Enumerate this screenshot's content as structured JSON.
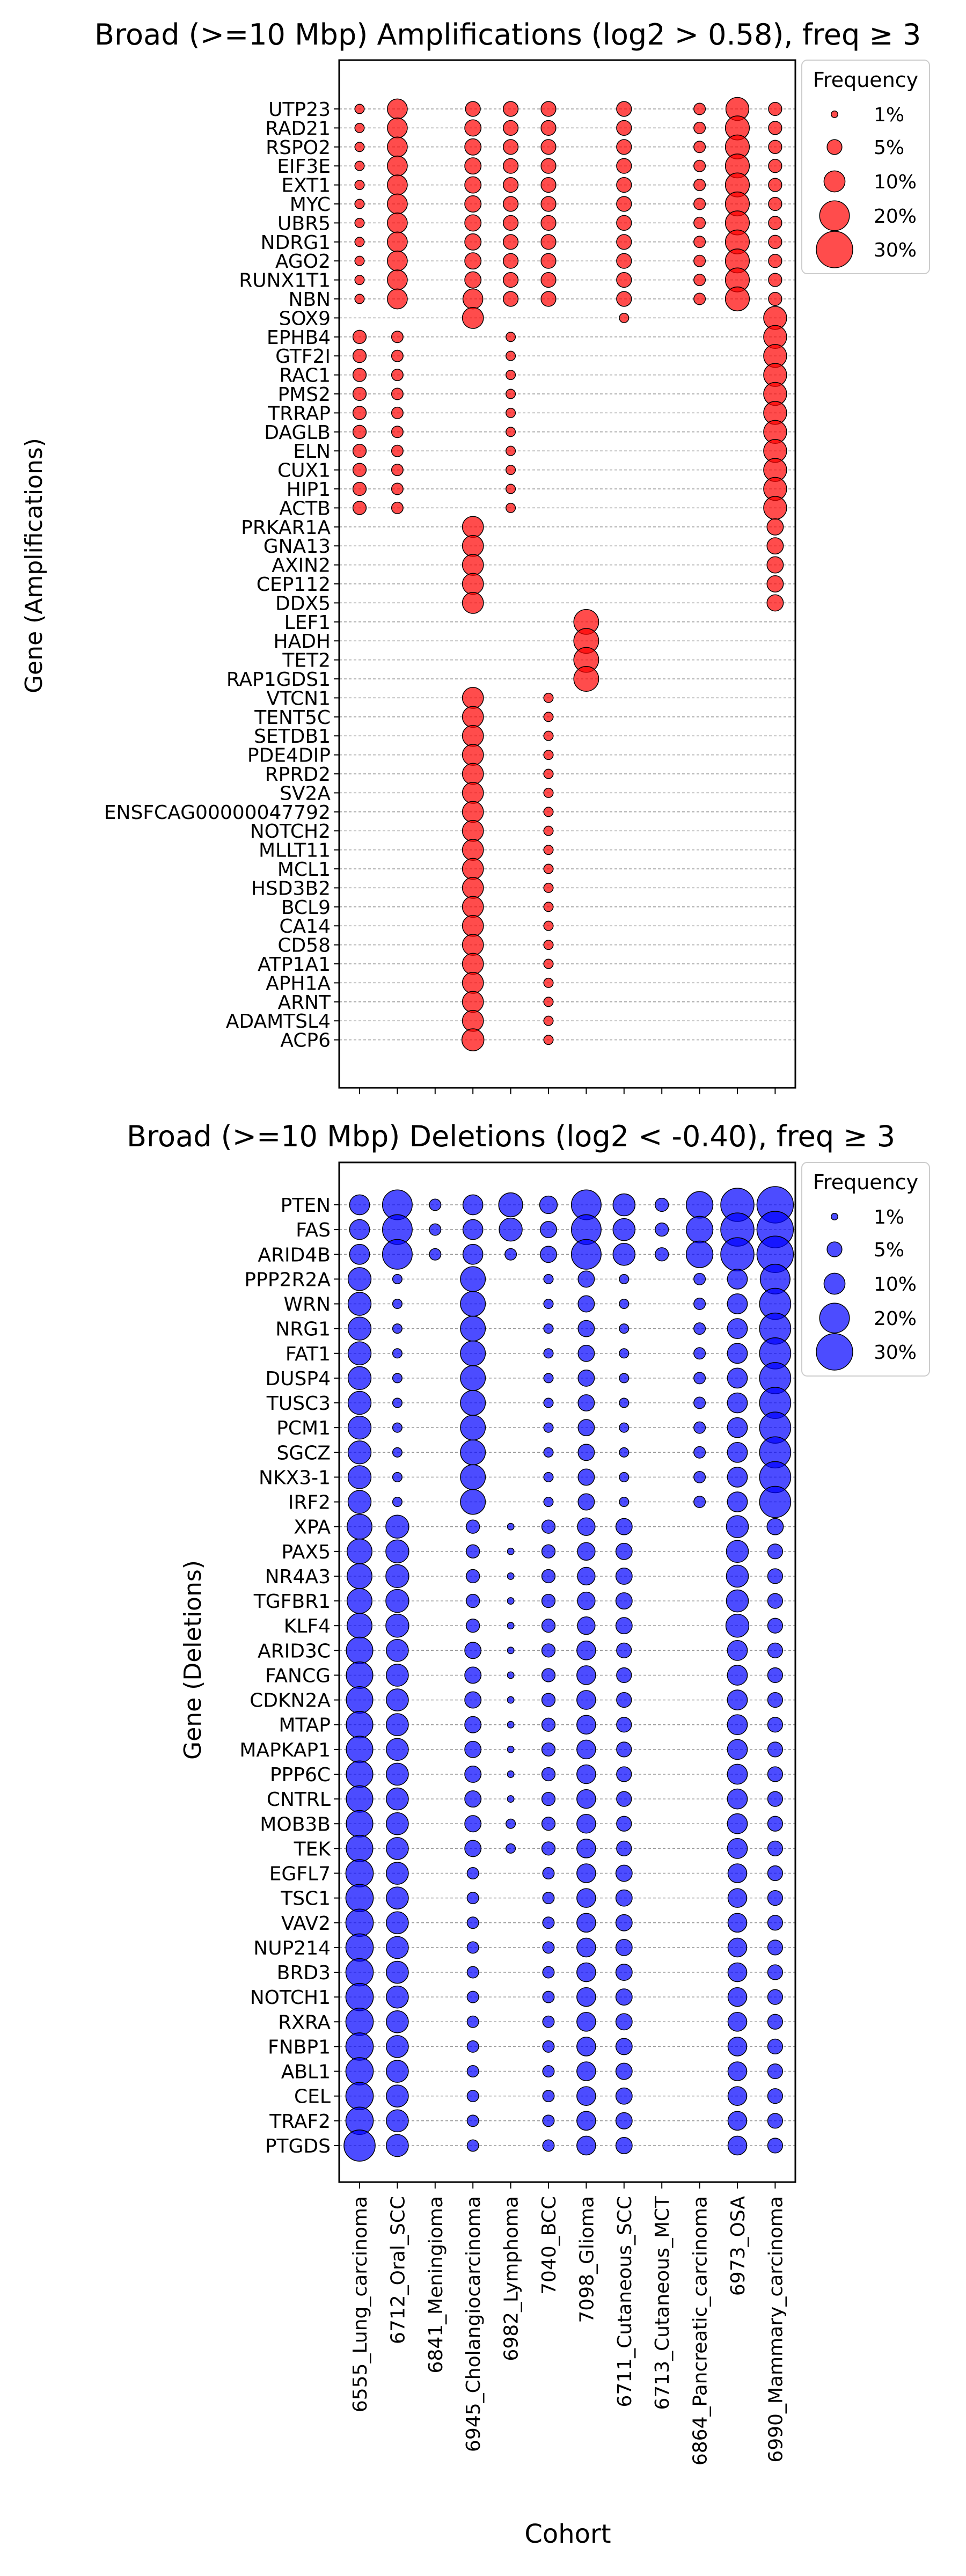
{
  "colors": {
    "amplification": "#ff0000",
    "deletion": "#0000ff",
    "text": "#000000",
    "gridline": "#808080"
  },
  "chart_data": [
    {
      "type": "scatter",
      "title": "Broad (>=10 Mbp) Amplifications (log2 > 0.58), freq ≥ 3",
      "ylabel": "Gene (Amplifications)",
      "xlabel": "",
      "color": "#ff0000",
      "grid": true,
      "legend": {
        "title": "Frequency",
        "placement": "upper-right outside",
        "labels": [
          "1%",
          "5%",
          "10%",
          "20%",
          "30%"
        ],
        "values": [
          1,
          5,
          10,
          20,
          30
        ]
      },
      "cohorts": [
        "6555_Lung_carcinoma",
        "6712_Oral_SCC",
        "6841_Meningioma",
        "6945_Cholangiocarcinoma",
        "6982_Lymphoma",
        "7040_BCC",
        "7098_Glioma",
        "6711_Cutaneous_SCC",
        "6713_Cutaneous_MCT",
        "6864_Pancreatic_carcinoma",
        "6973_OSA",
        "6990_Mammary_carcinoma"
      ],
      "genes": [
        "UTP23",
        "RAD21",
        "RSPO2",
        "EIF3E",
        "EXT1",
        "MYC",
        "UBR5",
        "NDRG1",
        "AGO2",
        "RUNX1T1",
        "NBN",
        "SOX9",
        "EPHB4",
        "GTF2I",
        "RAC1",
        "PMS2",
        "TRRAP",
        "DAGLB",
        "ELN",
        "CUX1",
        "HIP1",
        "ACTB",
        "PRKAR1A",
        "GNA13",
        "AXIN2",
        "CEP112",
        "DDX5",
        "LEF1",
        "HADH",
        "TET2",
        "RAP1GDS1",
        "VTCN1",
        "TENT5C",
        "SETDB1",
        "PDE4DIP",
        "RPRD2",
        "SV2A",
        "ENSFCAG00000047792",
        "NOTCH2",
        "MLLT11",
        "MCL1",
        "HSD3B2",
        "BCL9",
        "CA14",
        "CD58",
        "ATP1A1",
        "APH1A",
        "ARNT",
        "ADAMTSL4",
        "ACP6"
      ],
      "groups": [
        {
          "genes": [
            "UTP23",
            "RAD21",
            "RSPO2",
            "EIF3E",
            "EXT1",
            "MYC",
            "UBR5",
            "NDRG1",
            "AGO2",
            "RUNX1T1",
            "NBN"
          ],
          "freq": {
            "6555_Lung_carcinoma": 2,
            "6712_Oral_SCC": 9,
            "6945_Cholangiocarcinoma": 6,
            "6982_Lymphoma": 5,
            "7040_BCC": 5,
            "6711_Cutaneous_SCC": 5,
            "6864_Pancreatic_carcinoma": 3,
            "6973_OSA": 13,
            "6990_Mammary_carcinoma": 4
          }
        },
        {
          "genes": [
            "SOX9"
          ],
          "freq": {
            "6945_Cholangiocarcinoma": 10,
            "6711_Cutaneous_SCC": 2,
            "6990_Mammary_carcinoma": 12
          }
        },
        {
          "genes": [
            "EPHB4",
            "GTF2I",
            "RAC1",
            "PMS2",
            "TRRAP",
            "DAGLB",
            "ELN",
            "CUX1",
            "HIP1",
            "ACTB"
          ],
          "freq": {
            "6555_Lung_carcinoma": 4,
            "6712_Oral_SCC": 3,
            "6982_Lymphoma": 2,
            "6990_Mammary_carcinoma": 12
          }
        },
        {
          "genes": [
            "PRKAR1A",
            "GNA13",
            "AXIN2",
            "CEP112",
            "DDX5"
          ],
          "freq": {
            "6945_Cholangiocarcinoma": 10,
            "6990_Mammary_carcinoma": 6
          }
        },
        {
          "genes": [
            "LEF1",
            "HADH",
            "TET2",
            "RAP1GDS1"
          ],
          "freq": {
            "7098_Glioma": 14
          }
        },
        {
          "genes": [
            "VTCN1",
            "TENT5C",
            "SETDB1",
            "PDE4DIP",
            "RPRD2",
            "SV2A",
            "ENSFCAG00000047792",
            "NOTCH2",
            "MLLT11",
            "MCL1",
            "HSD3B2",
            "BCL9",
            "CA14",
            "CD58",
            "ATP1A1",
            "APH1A",
            "ARNT",
            "ADAMTSL4",
            "ACP6"
          ],
          "freq": {
            "6945_Cholangiocarcinoma": 10,
            "7040_BCC": 2
          }
        }
      ],
      "overrides": [
        {
          "gene": "UTP23",
          "cohort": "6945_Cholangiocarcinoma",
          "freq": 5
        },
        {
          "gene": "UTP23",
          "cohort": "6973_OSA",
          "freq": 12
        },
        {
          "gene": "NBN",
          "cohort": "6945_Cholangiocarcinoma",
          "freq": 9
        },
        {
          "gene": "ACP6",
          "cohort": "6945_Cholangiocarcinoma",
          "freq": 11
        }
      ]
    },
    {
      "type": "scatter",
      "title": "Broad (>=10 Mbp) Deletions (log2 < -0.40), freq ≥ 3",
      "ylabel": "Gene (Deletions)",
      "xlabel": "Cohort",
      "color": "#0000ff",
      "grid": true,
      "legend": {
        "title": "Frequency",
        "placement": "upper-right outside",
        "labels": [
          "1%",
          "5%",
          "10%",
          "20%",
          "30%"
        ],
        "values": [
          1,
          5,
          10,
          20,
          30
        ]
      },
      "cohorts": [
        "6555_Lung_carcinoma",
        "6712_Oral_SCC",
        "6841_Meningioma",
        "6945_Cholangiocarcinoma",
        "6982_Lymphoma",
        "7040_BCC",
        "7098_Glioma",
        "6711_Cutaneous_SCC",
        "6713_Cutaneous_MCT",
        "6864_Pancreatic_carcinoma",
        "6973_OSA",
        "6990_Mammary_carcinoma"
      ],
      "genes": [
        "PTEN",
        "FAS",
        "ARID4B",
        "PPP2R2A",
        "WRN",
        "NRG1",
        "FAT1",
        "DUSP4",
        "TUSC3",
        "PCM1",
        "SGCZ",
        "NKX3-1",
        "IRF2",
        "XPA",
        "PAX5",
        "NR4A3",
        "TGFBR1",
        "KLF4",
        "ARID3C",
        "FANCG",
        "CDKN2A",
        "MTAP",
        "MAPKAP1",
        "PPP6C",
        "CNTRL",
        "MOB3B",
        "TEK",
        "EGFL7",
        "TSC1",
        "VAV2",
        "NUP214",
        "BRD3",
        "NOTCH1",
        "RXRA",
        "FNBP1",
        "ABL1",
        "CEL",
        "TRAF2",
        "PTGDS"
      ],
      "groups": [
        {
          "genes": [
            "PTEN",
            "FAS"
          ],
          "freq": {
            "6555_Lung_carcinoma": 9,
            "6712_Oral_SCC": 20,
            "6841_Meningioma": 3,
            "6945_Cholangiocarcinoma": 9,
            "6982_Lymphoma": 13,
            "7040_BCC": 6,
            "7098_Glioma": 20,
            "6711_Cutaneous_SCC": 11,
            "6713_Cutaneous_MCT": 4,
            "6864_Pancreatic_carcinoma": 16,
            "6973_OSA": 25,
            "6990_Mammary_carcinoma": 30
          }
        },
        {
          "genes": [
            "ARID4B"
          ],
          "freq": {
            "6555_Lung_carcinoma": 9,
            "6712_Oral_SCC": 20,
            "6841_Meningioma": 3,
            "6945_Cholangiocarcinoma": 9,
            "6982_Lymphoma": 3,
            "7040_BCC": 6,
            "7098_Glioma": 20,
            "6711_Cutaneous_SCC": 11,
            "6713_Cutaneous_MCT": 4,
            "6864_Pancreatic_carcinoma": 16,
            "6973_OSA": 25,
            "6990_Mammary_carcinoma": 30
          }
        },
        {
          "genes": [
            "PPP2R2A",
            "WRN",
            "NRG1",
            "FAT1",
            "DUSP4",
            "TUSC3",
            "PCM1",
            "SGCZ",
            "NKX3-1",
            "IRF2"
          ],
          "freq": {
            "6555_Lung_carcinoma": 12,
            "6712_Oral_SCC": 2,
            "6945_Cholangiocarcinoma": 14,
            "7040_BCC": 2,
            "7098_Glioma": 6,
            "6711_Cutaneous_SCC": 2,
            "6864_Pancreatic_carcinoma": 3,
            "6973_OSA": 9,
            "6990_Mammary_carcinoma": 22
          }
        },
        {
          "genes": [
            "XPA",
            "PAX5",
            "NR4A3",
            "TGFBR1",
            "KLF4"
          ],
          "freq": {
            "6555_Lung_carcinoma": 14,
            "6712_Oral_SCC": 12,
            "6945_Cholangiocarcinoma": 4,
            "6982_Lymphoma": 1,
            "7040_BCC": 4,
            "7098_Glioma": 7,
            "6711_Cutaneous_SCC": 6,
            "6973_OSA": 11,
            "6990_Mammary_carcinoma": 5
          }
        },
        {
          "genes": [
            "ARID3C",
            "FANCG",
            "CDKN2A",
            "MTAP",
            "MAPKAP1",
            "PPP6C",
            "CNTRL",
            "MOB3B",
            "TEK"
          ],
          "freq": {
            "6555_Lung_carcinoma": 16,
            "6712_Oral_SCC": 11,
            "6945_Cholangiocarcinoma": 6,
            "6982_Lymphoma": 1,
            "7040_BCC": 4,
            "7098_Glioma": 8,
            "6711_Cutaneous_SCC": 5,
            "6973_OSA": 9,
            "6990_Mammary_carcinoma": 5
          }
        },
        {
          "genes": [
            "EGFL7",
            "TSC1",
            "VAV2",
            "NUP214",
            "BRD3",
            "NOTCH1",
            "RXRA",
            "FNBP1",
            "ABL1",
            "CEL",
            "TRAF2",
            "PTGDS"
          ],
          "freq": {
            "6555_Lung_carcinoma": 17,
            "6712_Oral_SCC": 11,
            "6945_Cholangiocarcinoma": 3,
            "7040_BCC": 3,
            "7098_Glioma": 8,
            "6711_Cutaneous_SCC": 6,
            "6973_OSA": 8,
            "6990_Mammary_carcinoma": 5
          }
        }
      ],
      "overrides": [
        {
          "gene": "PTEN",
          "cohort": "7040_BCC",
          "freq": 7
        },
        {
          "gene": "FAS",
          "cohort": "6982_Lymphoma",
          "freq": 12
        },
        {
          "gene": "PPP2R2A",
          "cohort": "6990_Mammary_carcinoma",
          "freq": 20
        },
        {
          "gene": "XPA",
          "cohort": "6990_Mammary_carcinoma",
          "freq": 6
        },
        {
          "gene": "KLF4",
          "cohort": "6973_OSA",
          "freq": 12
        },
        {
          "gene": "MOB3B",
          "cohort": "6982_Lymphoma",
          "freq": 2
        },
        {
          "gene": "TEK",
          "cohort": "6982_Lymphoma",
          "freq": 2
        },
        {
          "gene": "PTGDS",
          "cohort": "6555_Lung_carcinoma",
          "freq": 22
        }
      ]
    }
  ]
}
